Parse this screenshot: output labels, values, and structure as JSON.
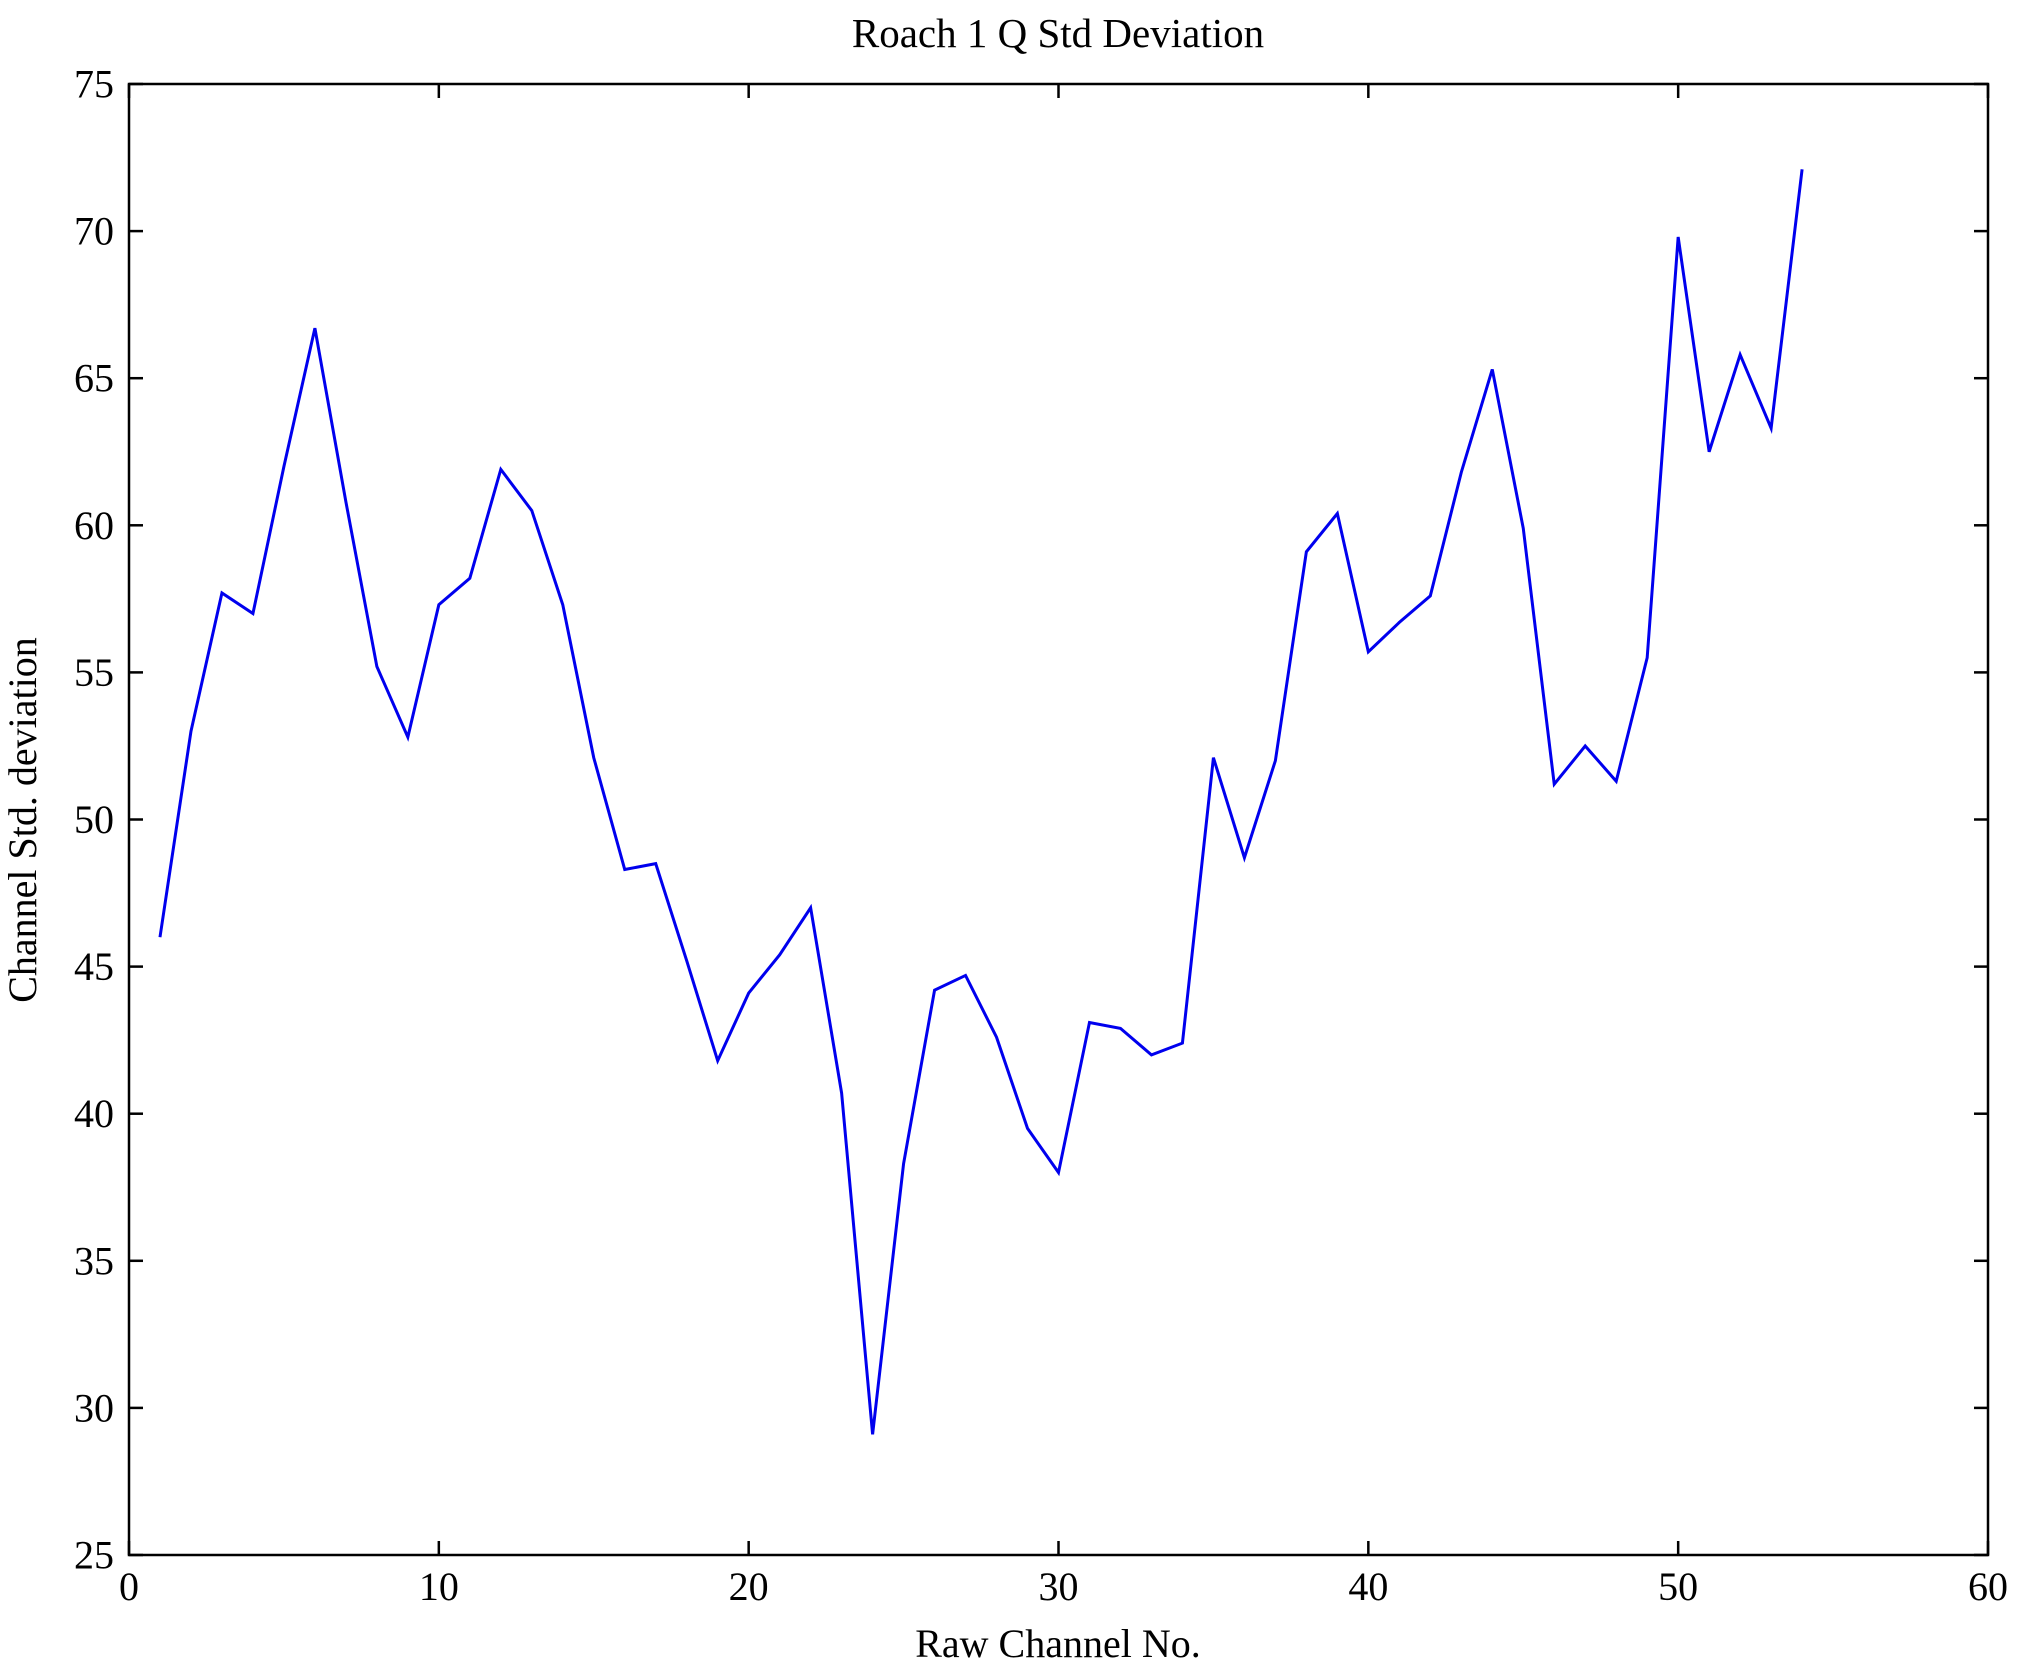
{
  "figure": {
    "background": "#ffffff"
  },
  "chart_data": {
    "type": "line",
    "title": "Roach 1 Q Std Deviation",
    "xlabel": "Raw Channel No.",
    "ylabel": "Channel Std. deviation",
    "xlim": [
      0,
      60
    ],
    "ylim": [
      25,
      75
    ],
    "xticks": [
      0,
      10,
      20,
      30,
      40,
      50,
      60
    ],
    "yticks": [
      25,
      30,
      35,
      40,
      45,
      50,
      55,
      60,
      65,
      70,
      75
    ],
    "grid": false,
    "legend_position": "none",
    "line_color": "#0000ee",
    "axis_color": "#000000",
    "series": [
      {
        "name": "Channel Std. deviation",
        "x": [
          1,
          2,
          3,
          4,
          5,
          6,
          7,
          8,
          9,
          10,
          11,
          12,
          13,
          14,
          15,
          16,
          17,
          18,
          19,
          20,
          21,
          22,
          23,
          24,
          25,
          26,
          27,
          28,
          29,
          30,
          31,
          32,
          33,
          34,
          35,
          36,
          37,
          38,
          39,
          40,
          41,
          42,
          43,
          44,
          45,
          46,
          47,
          48,
          49,
          50,
          51,
          52,
          53,
          54
        ],
        "y": [
          46.0,
          53.0,
          57.7,
          57.0,
          62.0,
          66.7,
          60.8,
          55.2,
          52.8,
          57.3,
          58.2,
          61.9,
          60.5,
          57.3,
          52.1,
          48.3,
          48.5,
          45.2,
          41.8,
          44.1,
          45.4,
          47.0,
          40.7,
          29.1,
          38.3,
          44.2,
          44.7,
          42.6,
          39.5,
          38.0,
          43.1,
          42.9,
          42.0,
          42.4,
          52.1,
          48.7,
          52.0,
          59.1,
          60.4,
          55.7,
          56.7,
          57.6,
          61.8,
          65.3,
          59.9,
          51.2,
          52.5,
          51.3,
          55.5,
          69.8,
          62.5,
          65.8,
          63.3,
          72.1
        ]
      }
    ]
  }
}
